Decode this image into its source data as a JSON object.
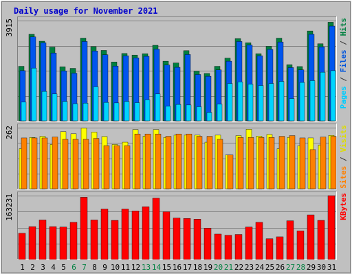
{
  "chart_data": {
    "type": "bar",
    "title": "Daily usage for November 2021",
    "x": [
      "1",
      "2",
      "3",
      "4",
      "5",
      "6",
      "7",
      "8",
      "9",
      "10",
      "11",
      "12",
      "13",
      "14",
      "15",
      "16",
      "17",
      "18",
      "19",
      "20",
      "21",
      "22",
      "23",
      "24",
      "25",
      "26",
      "27",
      "28",
      "29",
      "30",
      "31"
    ],
    "weekend_days": [
      "6",
      "7",
      "13",
      "14",
      "20",
      "21",
      "27",
      "28"
    ],
    "panels": [
      {
        "id": "hits-files-pages",
        "max_label": "3915",
        "ylim": [
          0,
          3915
        ],
        "grid": true,
        "side_label": [
          {
            "text": "Pages",
            "color": "#00ccff"
          },
          {
            "text": " / ",
            "color": "#333333"
          },
          {
            "text": "Files",
            "color": "#0055dd"
          },
          {
            "text": " / ",
            "color": "#333333"
          },
          {
            "text": "Hits",
            "color": "#008040"
          }
        ],
        "series": [
          {
            "name": "Hits",
            "color": "#008040",
            "values": [
              2130,
              3380,
              3110,
              2880,
              2110,
              2050,
              3230,
              2900,
              2750,
              2300,
              2630,
              2570,
              2620,
              2950,
              2330,
              2260,
              2740,
              1940,
              1850,
              2130,
              2450,
              3210,
              3050,
              2620,
              2910,
              3230,
              2190,
              2120,
              3510,
              3010,
              3850
            ]
          },
          {
            "name": "Files",
            "color": "#0055ee",
            "values": [
              1960,
              3280,
              3050,
              2650,
              1950,
              1860,
              3100,
              2730,
              2580,
              2140,
              2540,
              2460,
              2520,
              2800,
              2180,
              2090,
              2590,
              1810,
              1740,
              1990,
              2330,
              3100,
              2960,
              2540,
              2790,
              3080,
              2080,
              1990,
              3380,
              2890,
              3700
            ]
          },
          {
            "name": "Pages",
            "color": "#00d4ff",
            "values": [
              730,
              2060,
              1150,
              1050,
              760,
              670,
              690,
              1330,
              720,
              700,
              760,
              710,
              820,
              1050,
              570,
              640,
              620,
              550,
              330,
              650,
              1460,
              1520,
              1430,
              1380,
              1460,
              1540,
              870,
              1500,
              1570,
              1900,
              1960
            ]
          }
        ]
      },
      {
        "id": "visits-sites",
        "max_label": "262",
        "ylim": [
          0,
          262
        ],
        "grid": true,
        "side_label": [
          {
            "text": "Sites",
            "color": "#ff8000"
          },
          {
            "text": " / ",
            "color": "#333333"
          },
          {
            "text": "Visits",
            "color": "#dddd00"
          }
        ],
        "series": [
          {
            "name": "Visits",
            "color": "#ffff00",
            "values": [
              172,
              220,
              225,
              190,
              245,
              236,
              260,
              243,
              224,
              190,
              200,
              254,
              226,
              254,
              220,
              230,
              230,
              230,
              200,
              230,
              145,
              228,
              255,
              226,
              233,
              172,
              220,
              185,
              218,
              188,
              229
            ]
          },
          {
            "name": "Sites",
            "color": "#ff8000",
            "values": [
              218,
              218,
              218,
              222,
              212,
              212,
              212,
              216,
              185,
              185,
              185,
              235,
              235,
              235,
              225,
              235,
              235,
              225,
              225,
              212,
              145,
              220,
              220,
              220,
              220,
              225,
              228,
              218,
              168,
              222,
              225
            ]
          }
        ]
      },
      {
        "id": "kbytes",
        "max_label": "163231",
        "ylim": [
          0,
          163231
        ],
        "grid": true,
        "side_label": [
          {
            "text": "KBytes",
            "color": "#ff0000"
          }
        ],
        "series": [
          {
            "name": "KBytes",
            "color": "#ff0000",
            "values": [
              67000,
              84000,
              101000,
              84000,
              83000,
              95000,
              159000,
              101000,
              129000,
              100000,
              129000,
              124000,
              135000,
              157000,
              122000,
              106000,
              105000,
              103000,
              80000,
              65000,
              62000,
              64000,
              83000,
              95000,
              53000,
              58000,
              99000,
              73000,
              114000,
              100000,
              163231
            ]
          }
        ]
      }
    ]
  }
}
